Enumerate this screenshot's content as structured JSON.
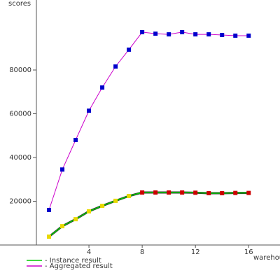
{
  "chart_data": {
    "type": "line",
    "y_label": "scores",
    "x_label": "warehouses",
    "x": [
      1,
      2,
      3,
      4,
      5,
      6,
      7,
      8,
      9,
      10,
      11,
      12,
      13,
      14,
      15,
      16
    ],
    "series": [
      {
        "name": "- Instance result",
        "color": "#00cc00",
        "marker_colors": [
          "#e8d800",
          "#e8d800",
          "#e8d800",
          "#e8d800",
          "#e8d800",
          "#e8d800",
          "#e8d800",
          "#cc0000",
          "#cc0000",
          "#cc0000",
          "#cc0000",
          "#cc0000",
          "#cc0000",
          "#cc0000",
          "#cc0000",
          "#cc0000"
        ],
        "values": [
          3800,
          8600,
          11800,
          15400,
          17900,
          20200,
          22400,
          24000,
          24000,
          24000,
          24000,
          23900,
          23700,
          23700,
          23800,
          23800
        ]
      },
      {
        "name": "- Aggregated result",
        "color": "#cc00cc",
        "marker_colors": [
          "#0000cc",
          "#0000cc",
          "#0000cc",
          "#0000cc",
          "#0000cc",
          "#0000cc",
          "#0000cc",
          "#0000cc",
          "#0000cc",
          "#0000cc",
          "#0000cc",
          "#0000cc",
          "#0000cc",
          "#0000cc",
          "#0000cc",
          "#0000cc"
        ],
        "values": [
          16000,
          34500,
          48000,
          61400,
          72000,
          81600,
          89300,
          97300,
          96600,
          96300,
          97300,
          96300,
          96300,
          96000,
          95700,
          95700
        ]
      }
    ],
    "xlim": [
      0,
      18.3
    ],
    "xticks": [
      4,
      8,
      12,
      16
    ],
    "ylim": [
      0,
      112000
    ],
    "yticks": [
      20000,
      40000,
      60000,
      80000
    ]
  }
}
